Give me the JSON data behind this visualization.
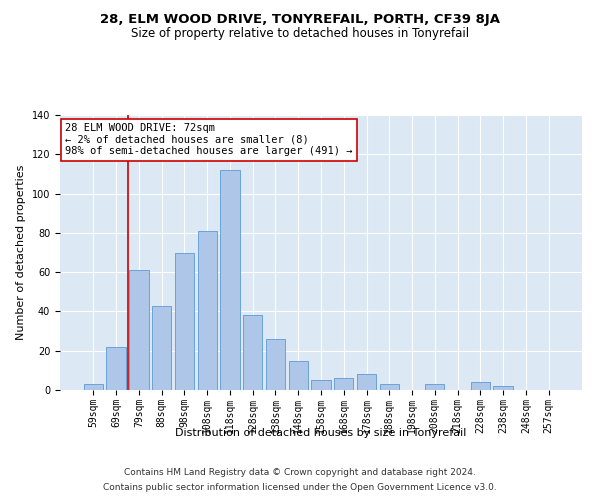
{
  "title": "28, ELM WOOD DRIVE, TONYREFAIL, PORTH, CF39 8JA",
  "subtitle": "Size of property relative to detached houses in Tonyrefail",
  "xlabel": "Distribution of detached houses by size in Tonyrefail",
  "ylabel": "Number of detached properties",
  "bar_labels": [
    "59sqm",
    "69sqm",
    "79sqm",
    "88sqm",
    "98sqm",
    "108sqm",
    "118sqm",
    "128sqm",
    "138sqm",
    "148sqm",
    "158sqm",
    "168sqm",
    "178sqm",
    "188sqm",
    "198sqm",
    "208sqm",
    "218sqm",
    "228sqm",
    "238sqm",
    "248sqm",
    "257sqm"
  ],
  "bar_values": [
    3,
    22,
    61,
    43,
    70,
    81,
    112,
    38,
    26,
    15,
    5,
    6,
    8,
    3,
    0,
    3,
    0,
    4,
    2,
    0,
    0
  ],
  "bar_color": "#aec6e8",
  "bar_edge_color": "#5b9bd5",
  "vline_x_index": 1.5,
  "vline_color": "#cc0000",
  "annotation_text": "28 ELM WOOD DRIVE: 72sqm\n← 2% of detached houses are smaller (8)\n98% of semi-detached houses are larger (491) →",
  "annotation_box_color": "#ffffff",
  "annotation_box_edge": "#cc0000",
  "ylim": [
    0,
    140
  ],
  "yticks": [
    0,
    20,
    40,
    60,
    80,
    100,
    120,
    140
  ],
  "background_color": "#dce9f5",
  "footer_line1": "Contains HM Land Registry data © Crown copyright and database right 2024.",
  "footer_line2": "Contains public sector information licensed under the Open Government Licence v3.0.",
  "title_fontsize": 9.5,
  "subtitle_fontsize": 8.5,
  "axis_label_fontsize": 8,
  "tick_fontsize": 7,
  "annotation_fontsize": 7.5,
  "footer_fontsize": 6.5
}
